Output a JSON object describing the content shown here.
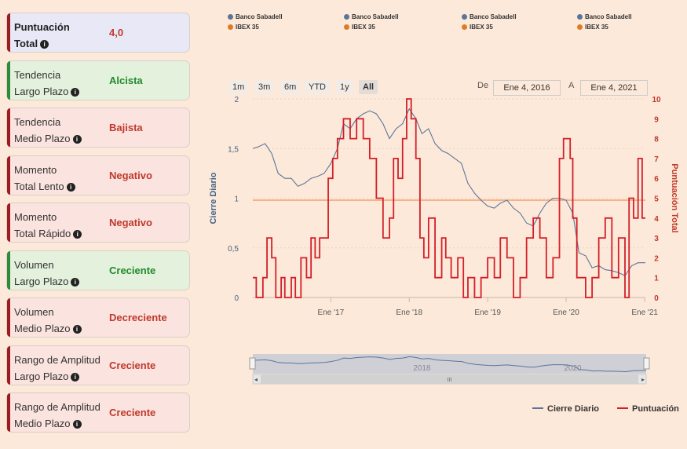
{
  "cards": [
    {
      "line1": "Puntuación",
      "line2": "Total",
      "value": "4,0",
      "bold": true,
      "bg": "#e8e8f6",
      "bar": "#9b1d22",
      "color": "#c0392b"
    },
    {
      "line1": "Tendencia",
      "line2": "Largo Plazo",
      "value": "Alcista",
      "bold": false,
      "bg": "#e3f1dd",
      "bar": "#2e8b3a",
      "color": "#1f8a2a"
    },
    {
      "line1": "Tendencia",
      "line2": "Medio Plazo",
      "value": "Bajista",
      "bold": false,
      "bg": "#fbe3df",
      "bar": "#9b1d22",
      "color": "#c0392b"
    },
    {
      "line1": "Momento",
      "line2": "Total Lento",
      "value": "Negativo",
      "bold": false,
      "bg": "#fbe3df",
      "bar": "#9b1d22",
      "color": "#c0392b"
    },
    {
      "line1": "Momento",
      "line2": "Total Rápido",
      "value": "Negativo",
      "bold": false,
      "bg": "#fbe3df",
      "bar": "#9b1d22",
      "color": "#c0392b"
    },
    {
      "line1": "Volumen",
      "line2": "Largo Plazo",
      "value": "Creciente",
      "bold": false,
      "bg": "#e3f1dd",
      "bar": "#2e8b3a",
      "color": "#1f8a2a"
    },
    {
      "line1": "Volumen",
      "line2": "Medio Plazo",
      "value": "Decreciente",
      "bold": false,
      "bg": "#fbe3df",
      "bar": "#9b1d22",
      "color": "#c0392b"
    },
    {
      "line1": "Rango de Amplitud",
      "line2": "Largo Plazo",
      "value": "Creciente",
      "bold": false,
      "bg": "#fbe3df",
      "bar": "#9b1d22",
      "color": "#c0392b"
    },
    {
      "line1": "Rango de Amplitud",
      "line2": "Medio Plazo",
      "value": "Creciente",
      "bold": false,
      "bg": "#fbe3df",
      "bar": "#9b1d22",
      "color": "#c0392b"
    }
  ],
  "top_legend": [
    {
      "a": "Banco Sabadell",
      "b": "IBEX 35"
    },
    {
      "a": "Banco Sabadell",
      "b": "IBEX 35"
    },
    {
      "a": "Banco Sabadell",
      "b": "IBEX 35"
    },
    {
      "a": "Banco Sabadell",
      "b": "IBEX 35"
    }
  ],
  "range_buttons": [
    "1m",
    "3m",
    "6m",
    "YTD",
    "1y",
    "All"
  ],
  "active_range": "All",
  "date_from_label": "De",
  "date_from": "Ene 4, 2016",
  "date_to_label": "A",
  "date_to": "Ene 4, 2021",
  "navigator_labels": [
    "2018",
    "2020"
  ],
  "navigator_scroll_glyph": "III",
  "colors": {
    "price": "#5a7599",
    "score": "#d41f2a",
    "ref": "#f3b38a",
    "axis_left": "#43638a",
    "axis_right": "#c0392b",
    "bg": "#fde9d9",
    "ibex": "#e07b25"
  },
  "chart_data": {
    "type": "line",
    "xlabel": "",
    "ylabel": "Cierre Diario",
    "y2label": "Puntuación Total",
    "ylim": [
      0,
      2
    ],
    "y2lim": [
      0,
      10
    ],
    "x_ticks": [
      "Ene '17",
      "Ene '18",
      "Ene '19",
      "Ene '20",
      "Ene '21"
    ],
    "y_ticks": [
      "0",
      "0,5",
      "1",
      "1,5",
      "2"
    ],
    "y2_ticks": [
      "0",
      "1",
      "2",
      "3",
      "4",
      "5",
      "6",
      "7",
      "8",
      "9",
      "10"
    ],
    "reference_line_y": 0.98,
    "x_range": [
      "2016-01-04",
      "2021-01-04"
    ],
    "series": [
      {
        "name": "Cierre Diario",
        "axis": "left",
        "points": [
          [
            "2016-01-04",
            1.5
          ],
          [
            "2016-02-01",
            1.52
          ],
          [
            "2016-03-01",
            1.55
          ],
          [
            "2016-04-01",
            1.45
          ],
          [
            "2016-05-01",
            1.25
          ],
          [
            "2016-06-01",
            1.2
          ],
          [
            "2016-07-01",
            1.2
          ],
          [
            "2016-08-01",
            1.12
          ],
          [
            "2016-09-01",
            1.15
          ],
          [
            "2016-10-01",
            1.2
          ],
          [
            "2016-11-01",
            1.22
          ],
          [
            "2016-12-01",
            1.25
          ],
          [
            "2017-01-01",
            1.35
          ],
          [
            "2017-02-01",
            1.5
          ],
          [
            "2017-03-01",
            1.75
          ],
          [
            "2017-04-01",
            1.7
          ],
          [
            "2017-05-01",
            1.8
          ],
          [
            "2017-06-01",
            1.85
          ],
          [
            "2017-07-01",
            1.88
          ],
          [
            "2017-08-01",
            1.85
          ],
          [
            "2017-09-01",
            1.75
          ],
          [
            "2017-10-01",
            1.6
          ],
          [
            "2017-11-01",
            1.7
          ],
          [
            "2017-12-01",
            1.75
          ],
          [
            "2018-01-01",
            1.9
          ],
          [
            "2018-02-01",
            1.8
          ],
          [
            "2018-03-01",
            1.65
          ],
          [
            "2018-04-01",
            1.7
          ],
          [
            "2018-05-01",
            1.55
          ],
          [
            "2018-06-01",
            1.48
          ],
          [
            "2018-07-01",
            1.45
          ],
          [
            "2018-08-01",
            1.4
          ],
          [
            "2018-09-01",
            1.35
          ],
          [
            "2018-10-01",
            1.15
          ],
          [
            "2018-11-01",
            1.05
          ],
          [
            "2018-12-01",
            0.98
          ],
          [
            "2019-01-01",
            0.92
          ],
          [
            "2019-02-01",
            0.9
          ],
          [
            "2019-03-01",
            0.95
          ],
          [
            "2019-04-01",
            0.98
          ],
          [
            "2019-05-01",
            0.9
          ],
          [
            "2019-06-01",
            0.85
          ],
          [
            "2019-07-01",
            0.75
          ],
          [
            "2019-08-01",
            0.72
          ],
          [
            "2019-09-01",
            0.85
          ],
          [
            "2019-10-01",
            0.95
          ],
          [
            "2019-11-01",
            1.0
          ],
          [
            "2019-12-01",
            1.0
          ],
          [
            "2020-01-01",
            0.98
          ],
          [
            "2020-02-01",
            0.85
          ],
          [
            "2020-03-01",
            0.45
          ],
          [
            "2020-04-01",
            0.42
          ],
          [
            "2020-05-01",
            0.3
          ],
          [
            "2020-06-01",
            0.32
          ],
          [
            "2020-07-01",
            0.28
          ],
          [
            "2020-08-01",
            0.27
          ],
          [
            "2020-09-01",
            0.25
          ],
          [
            "2020-10-01",
            0.22
          ],
          [
            "2020-11-01",
            0.32
          ],
          [
            "2020-12-01",
            0.35
          ],
          [
            "2021-01-04",
            0.35
          ]
        ]
      },
      {
        "name": "Puntuación",
        "axis": "right",
        "step": true,
        "points": [
          [
            "2016-01-04",
            1
          ],
          [
            "2016-01-20",
            0
          ],
          [
            "2016-02-20",
            1
          ],
          [
            "2016-03-10",
            3
          ],
          [
            "2016-04-01",
            2
          ],
          [
            "2016-04-20",
            0
          ],
          [
            "2016-05-15",
            1
          ],
          [
            "2016-06-01",
            0
          ],
          [
            "2016-07-01",
            1
          ],
          [
            "2016-07-20",
            0
          ],
          [
            "2016-08-15",
            2
          ],
          [
            "2016-09-10",
            1
          ],
          [
            "2016-10-01",
            3
          ],
          [
            "2016-10-20",
            2
          ],
          [
            "2016-11-10",
            3
          ],
          [
            "2016-12-01",
            3
          ],
          [
            "2016-12-20",
            6
          ],
          [
            "2017-01-10",
            7
          ],
          [
            "2017-02-01",
            8
          ],
          [
            "2017-03-01",
            9
          ],
          [
            "2017-04-01",
            8
          ],
          [
            "2017-05-01",
            9
          ],
          [
            "2017-06-01",
            8
          ],
          [
            "2017-07-01",
            7
          ],
          [
            "2017-08-01",
            5
          ],
          [
            "2017-09-01",
            3
          ],
          [
            "2017-10-01",
            4
          ],
          [
            "2017-10-20",
            7
          ],
          [
            "2017-11-10",
            6
          ],
          [
            "2017-12-01",
            8
          ],
          [
            "2017-12-20",
            10
          ],
          [
            "2018-01-10",
            9
          ],
          [
            "2018-02-01",
            7
          ],
          [
            "2018-02-20",
            3
          ],
          [
            "2018-03-10",
            2
          ],
          [
            "2018-04-01",
            4
          ],
          [
            "2018-05-01",
            1
          ],
          [
            "2018-06-01",
            3
          ],
          [
            "2018-06-20",
            2
          ],
          [
            "2018-07-15",
            1
          ],
          [
            "2018-08-15",
            2
          ],
          [
            "2018-09-10",
            0
          ],
          [
            "2018-10-01",
            1
          ],
          [
            "2018-11-01",
            0
          ],
          [
            "2018-12-01",
            1
          ],
          [
            "2019-01-01",
            2
          ],
          [
            "2019-02-01",
            1
          ],
          [
            "2019-03-01",
            3
          ],
          [
            "2019-04-01",
            2
          ],
          [
            "2019-05-01",
            0
          ],
          [
            "2019-06-01",
            1
          ],
          [
            "2019-07-01",
            3
          ],
          [
            "2019-08-01",
            4
          ],
          [
            "2019-09-01",
            3
          ],
          [
            "2019-10-01",
            1
          ],
          [
            "2019-11-01",
            2
          ],
          [
            "2019-12-01",
            7
          ],
          [
            "2019-12-20",
            8
          ],
          [
            "2020-01-20",
            7
          ],
          [
            "2020-02-01",
            4
          ],
          [
            "2020-02-20",
            1
          ],
          [
            "2020-04-01",
            0
          ],
          [
            "2020-05-01",
            1
          ],
          [
            "2020-06-01",
            3
          ],
          [
            "2020-07-01",
            4
          ],
          [
            "2020-08-01",
            1
          ],
          [
            "2020-09-01",
            3
          ],
          [
            "2020-10-01",
            0
          ],
          [
            "2020-10-20",
            5
          ],
          [
            "2020-11-10",
            4
          ],
          [
            "2020-12-01",
            7
          ],
          [
            "2020-12-20",
            4
          ],
          [
            "2021-01-04",
            4
          ]
        ]
      }
    ],
    "legend": [
      {
        "name": "Cierre Diario",
        "color": "#5a7599"
      },
      {
        "name": "Puntuación",
        "color": "#d41f2a"
      }
    ],
    "legend_position": "bottom-right"
  }
}
